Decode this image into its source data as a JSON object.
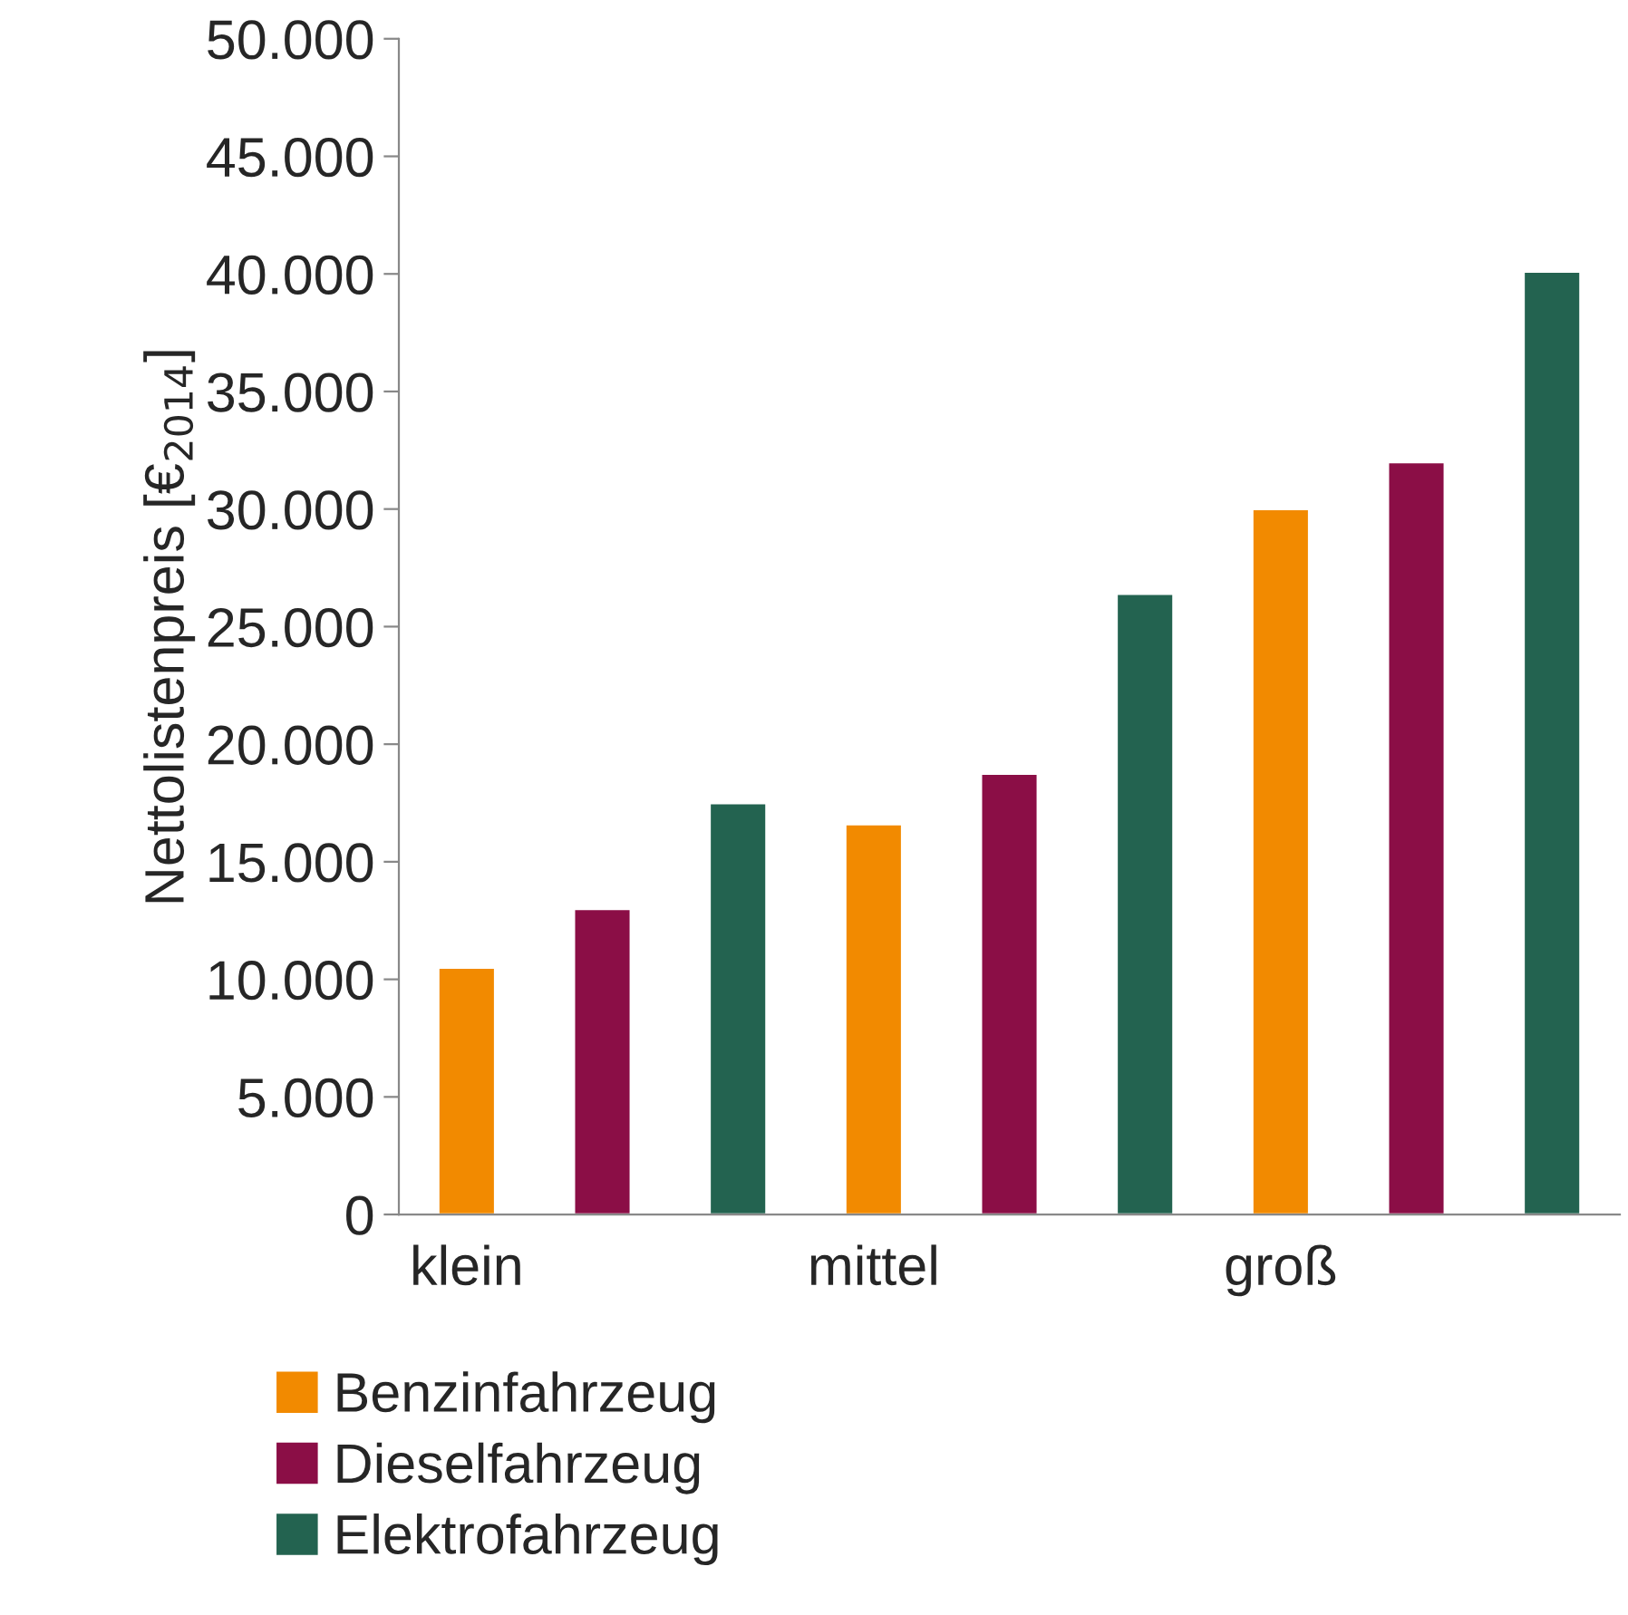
{
  "chart_data": {
    "type": "bar",
    "ylabel": "Nettolistenpreis [€$_{2014}$]",
    "categories": [
      "klein",
      null,
      null,
      "mittel",
      null,
      null,
      "groß",
      null,
      null
    ],
    "series": [
      {
        "name": "Benzinfahrzeug",
        "color": "#f28a00",
        "values": [
          10500,
          null,
          null,
          16600,
          null,
          null,
          30000,
          null,
          null
        ]
      },
      {
        "name": "Dieselfahrzeug",
        "color": "#8b0e46",
        "values": [
          null,
          13000,
          null,
          null,
          18750,
          null,
          null,
          32000,
          null
        ]
      },
      {
        "name": "Elektrofahrzeug",
        "color": "#236350",
        "values": [
          null,
          null,
          17500,
          null,
          null,
          26400,
          null,
          null,
          40100
        ]
      }
    ],
    "ylim": [
      0,
      50000
    ],
    "yticks": [
      0,
      {
        "value": 5000,
        "label": "5.000"
      },
      {
        "value": 10000,
        "label": "10.000"
      },
      {
        "value": 15000,
        "label": "15.000"
      },
      {
        "value": 20000,
        "label": "20.000"
      },
      {
        "value": 25000,
        "label": "25.000"
      },
      {
        "value": 30000,
        "label": "30.000"
      },
      {
        "value": 35000,
        "label": "35.000"
      },
      {
        "value": 40000,
        "label": "40.000"
      },
      {
        "value": 45000,
        "label": "45.000"
      },
      {
        "value": 50000,
        "label": "50.000"
      }
    ],
    "grid": false,
    "legend": "bottom"
  }
}
